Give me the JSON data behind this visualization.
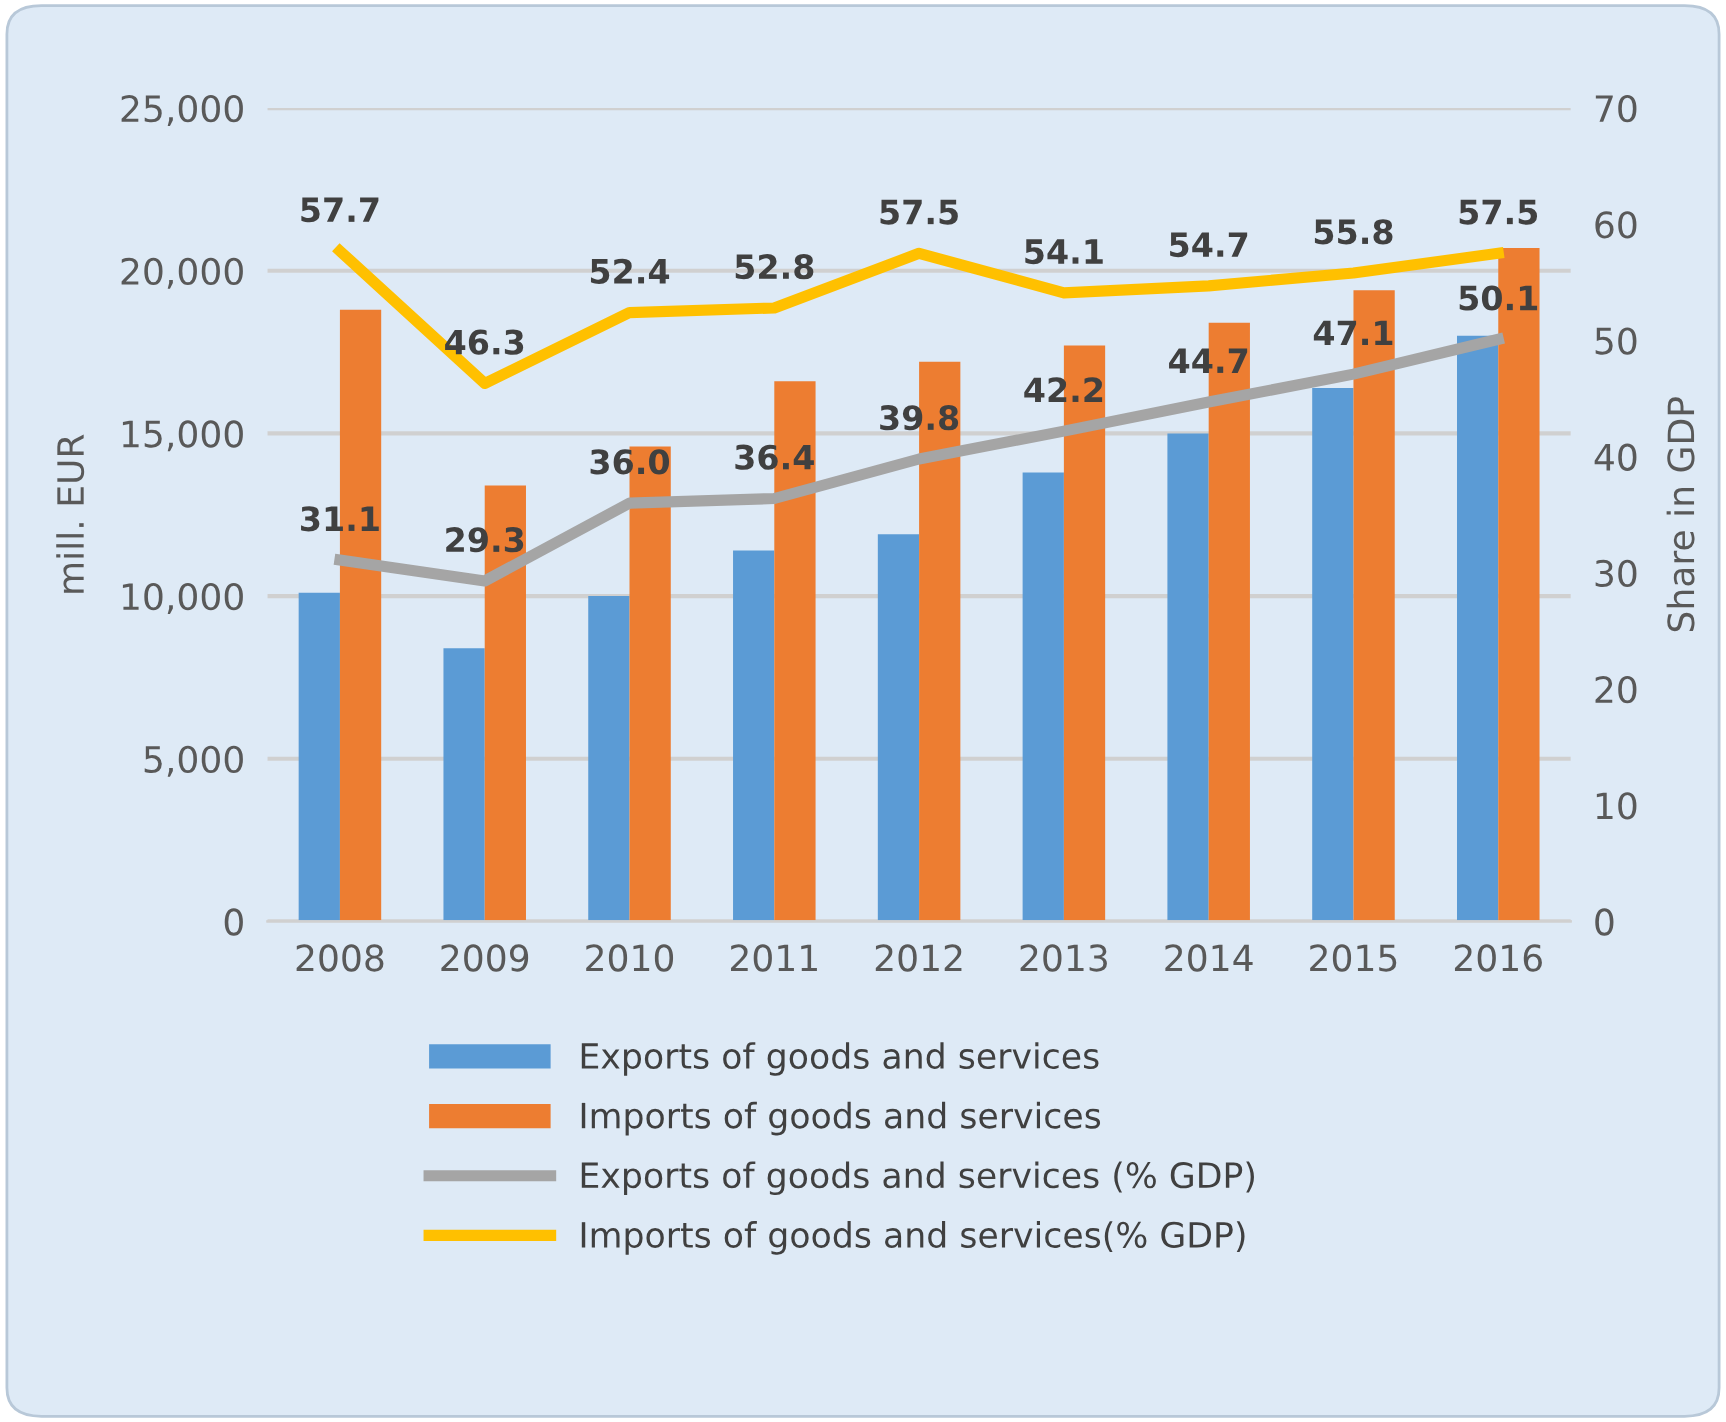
{
  "chart_data": {
    "type": "bar",
    "ylabel": "mill. EUR",
    "y2label": "Share in GDP",
    "categories": [
      "2008",
      "2009",
      "2010",
      "2011",
      "2012",
      "2013",
      "2014",
      "2015",
      "2016"
    ],
    "series": [
      {
        "name": "Exports of goods and services",
        "color": "#5b9bd5",
        "values": [
          10100,
          8400,
          10000,
          11400,
          11900,
          13800,
          15000,
          16400,
          18000
        ]
      },
      {
        "name": "Imports of goods and services",
        "color": "#ed7d31",
        "values": [
          18800,
          13400,
          14600,
          16600,
          17200,
          17700,
          18400,
          19400,
          20700
        ]
      },
      {
        "name": "Exports of goods and services (% GDP)",
        "type": "line",
        "axis": "y2",
        "color": "#a5a5a5",
        "values": [
          31.1,
          29.3,
          36.0,
          36.4,
          39.8,
          42.2,
          44.7,
          47.1,
          50.1
        ],
        "value_labels": [
          "31.1",
          "29.3",
          "36.0",
          "36.4",
          "39.8",
          "42.2",
          "44.7",
          "47.1",
          "50.1"
        ]
      },
      {
        "name": "Imports of goods and services(% GDP)",
        "type": "line",
        "axis": "y2",
        "color": "#ffc000",
        "values": [
          57.7,
          46.3,
          52.4,
          52.8,
          57.5,
          54.1,
          54.7,
          55.8,
          57.5
        ],
        "value_labels": [
          "57.7",
          "46.3",
          "52.4",
          "52.8",
          "57.5",
          "54.1",
          "54.7",
          "55.8",
          "57.5"
        ]
      }
    ],
    "ylim": [
      0,
      25000
    ],
    "yticks": [
      {
        "value": 0,
        "label": "0"
      },
      {
        "value": 5000,
        "label": "5,000"
      },
      {
        "value": 10000,
        "label": "10,000"
      },
      {
        "value": 15000,
        "label": "15,000"
      },
      {
        "value": 20000,
        "label": "20,000"
      },
      {
        "value": 25000,
        "label": "25,000"
      }
    ],
    "y2lim": [
      0,
      70
    ],
    "y2ticks": [
      0,
      10,
      20,
      30,
      40,
      50,
      60,
      70
    ],
    "grid": "y",
    "legend": "bottom",
    "marker": "none",
    "line_style": "solid"
  }
}
